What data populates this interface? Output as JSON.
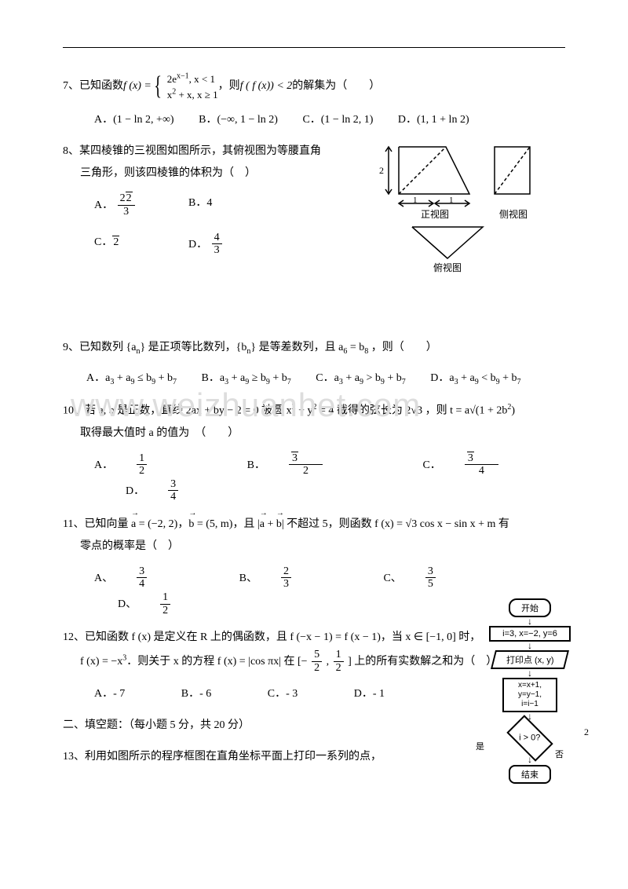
{
  "q7": {
    "prefix": "7、已知函数 ",
    "fx_label": "f (x) =",
    "case1": "2e<sup>x−1</sup>, x < 1",
    "case2": "x<sup>2</sup> + x, x ≥ 1",
    "mid": "，则 ",
    "cond": "f ( f (x)) < 2",
    "tail": " 的解集为（　　）",
    "optA": "A．(1 − ln 2, +∞)",
    "optB": "B．(−∞, 1 − ln 2)",
    "optC": "C．(1 − ln 2, 1)",
    "optD": "D．(1, 1 + ln 2)"
  },
  "q8": {
    "line1": "8、某四棱锥的三视图如图所示，其俯视图为等腰直角",
    "line2": "三角形，则该四棱锥的体积为（　）",
    "optA_label": "A．",
    "optA_num": "2√2",
    "optA_den": "3",
    "optB": "B．4",
    "optC": "C．√2",
    "optD_label": "D．",
    "optD_num": "4",
    "optD_den": "3",
    "front_label": "正视图",
    "side_label": "侧视图",
    "top_label": "俯视图",
    "dim_2": "2",
    "dim_1a": "1",
    "dim_1b": "1"
  },
  "q9": {
    "stem": "9、已知数列 {a<sub>n</sub>} 是正项等比数列，{b<sub>n</sub>} 是等差数列，且 a<sub>6</sub> = b<sub>8</sub> ，则（　　）",
    "optA": "A．a<sub>3</sub> + a<sub>9</sub> ≤ b<sub>9</sub> + b<sub>7</sub>",
    "optB": "B．a<sub>3</sub> + a<sub>9</sub> ≥ b<sub>9</sub> + b<sub>7</sub>",
    "optC": "C．a<sub>3</sub> + a<sub>9</sub> > b<sub>9</sub> + b<sub>7</sub>",
    "optD": "D．a<sub>3</sub> + a<sub>9</sub> < b<sub>9</sub> + b<sub>7</sub>"
  },
  "q10": {
    "line1": "10、若 a, b 是正数，直线 2ax + by − 2 = 0 被圆 x<sup>2</sup> + y<sup>2</sup> = 4 截得的弦长为 2√3 ，则 t = a√(1 + 2b<sup>2</sup>)",
    "line2": "取得最大值时 a 的值为　（　　）",
    "optA_l": "A．",
    "optA_num": "1",
    "optA_den": "2",
    "optB_l": "B．",
    "optB_num": "√3",
    "optB_den": "2",
    "optC_l": "C．",
    "optC_num": "√3",
    "optC_den": "4",
    "optD_l": "D．",
    "optD_num": "3",
    "optD_den": "4"
  },
  "q11": {
    "stem": "11、已知向量 <span class=\"vec\">a</span> = (−2, 2)，<span class=\"vec\">b</span> = (5, m)，且 |<span class=\"vec\">a</span> + <span class=\"vec\">b</span>| 不超过 5，则函数 f (x) = √3 cos x − sin x + m 有",
    "line2": "零点的概率是（　）",
    "optA_l": "A、",
    "optA_num": "3",
    "optA_den": "4",
    "optB_l": "B、",
    "optB_num": "2",
    "optB_den": "3",
    "optC_l": "C、",
    "optC_num": "3",
    "optC_den": "5",
    "optD_l": "D、",
    "optD_num": "1",
    "optD_den": "2"
  },
  "q12": {
    "line1": "12、已知函数 f (x) 是定义在 R 上的偶函数，且 f (−x − 1) = f (x − 1)，当 x ∈ [−1, 0] 时，",
    "line2_pre": "f (x) = −x<sup>3</sup>．则关于 x 的方程 f (x) = |cos πx| 在 [−",
    "line2_frac1_num": "5",
    "line2_frac1_den": "2",
    "line2_mid": ", ",
    "line2_frac2_num": "1",
    "line2_frac2_den": "2",
    "line2_post": "] 上的所有实数解之和为（　）",
    "optA": "A．- 7",
    "optB": "B．- 6",
    "optC": "C．- 3",
    "optD": "D．- 1"
  },
  "section2": "二、填空题：（每小题 5 分，共 20 分）",
  "q13": "13、利用如图所示的程序框图在直角坐标平面上打印一系列的点，",
  "flowchart": {
    "start": "开始",
    "init": "i=3, x=−2, y=6",
    "print": "打印点 (x, y)",
    "update": "x=x+1,\ny=y−1,\ni=i−1",
    "cond": "i > 0?",
    "yes": "是",
    "no": "否",
    "end": "结束"
  },
  "page_number": "2",
  "watermark": "www.weizhuanhet.com",
  "colors": {
    "text": "#000000",
    "bg": "#ffffff",
    "watermark": "#dddddd",
    "flowchart_stroke": "#000000"
  }
}
